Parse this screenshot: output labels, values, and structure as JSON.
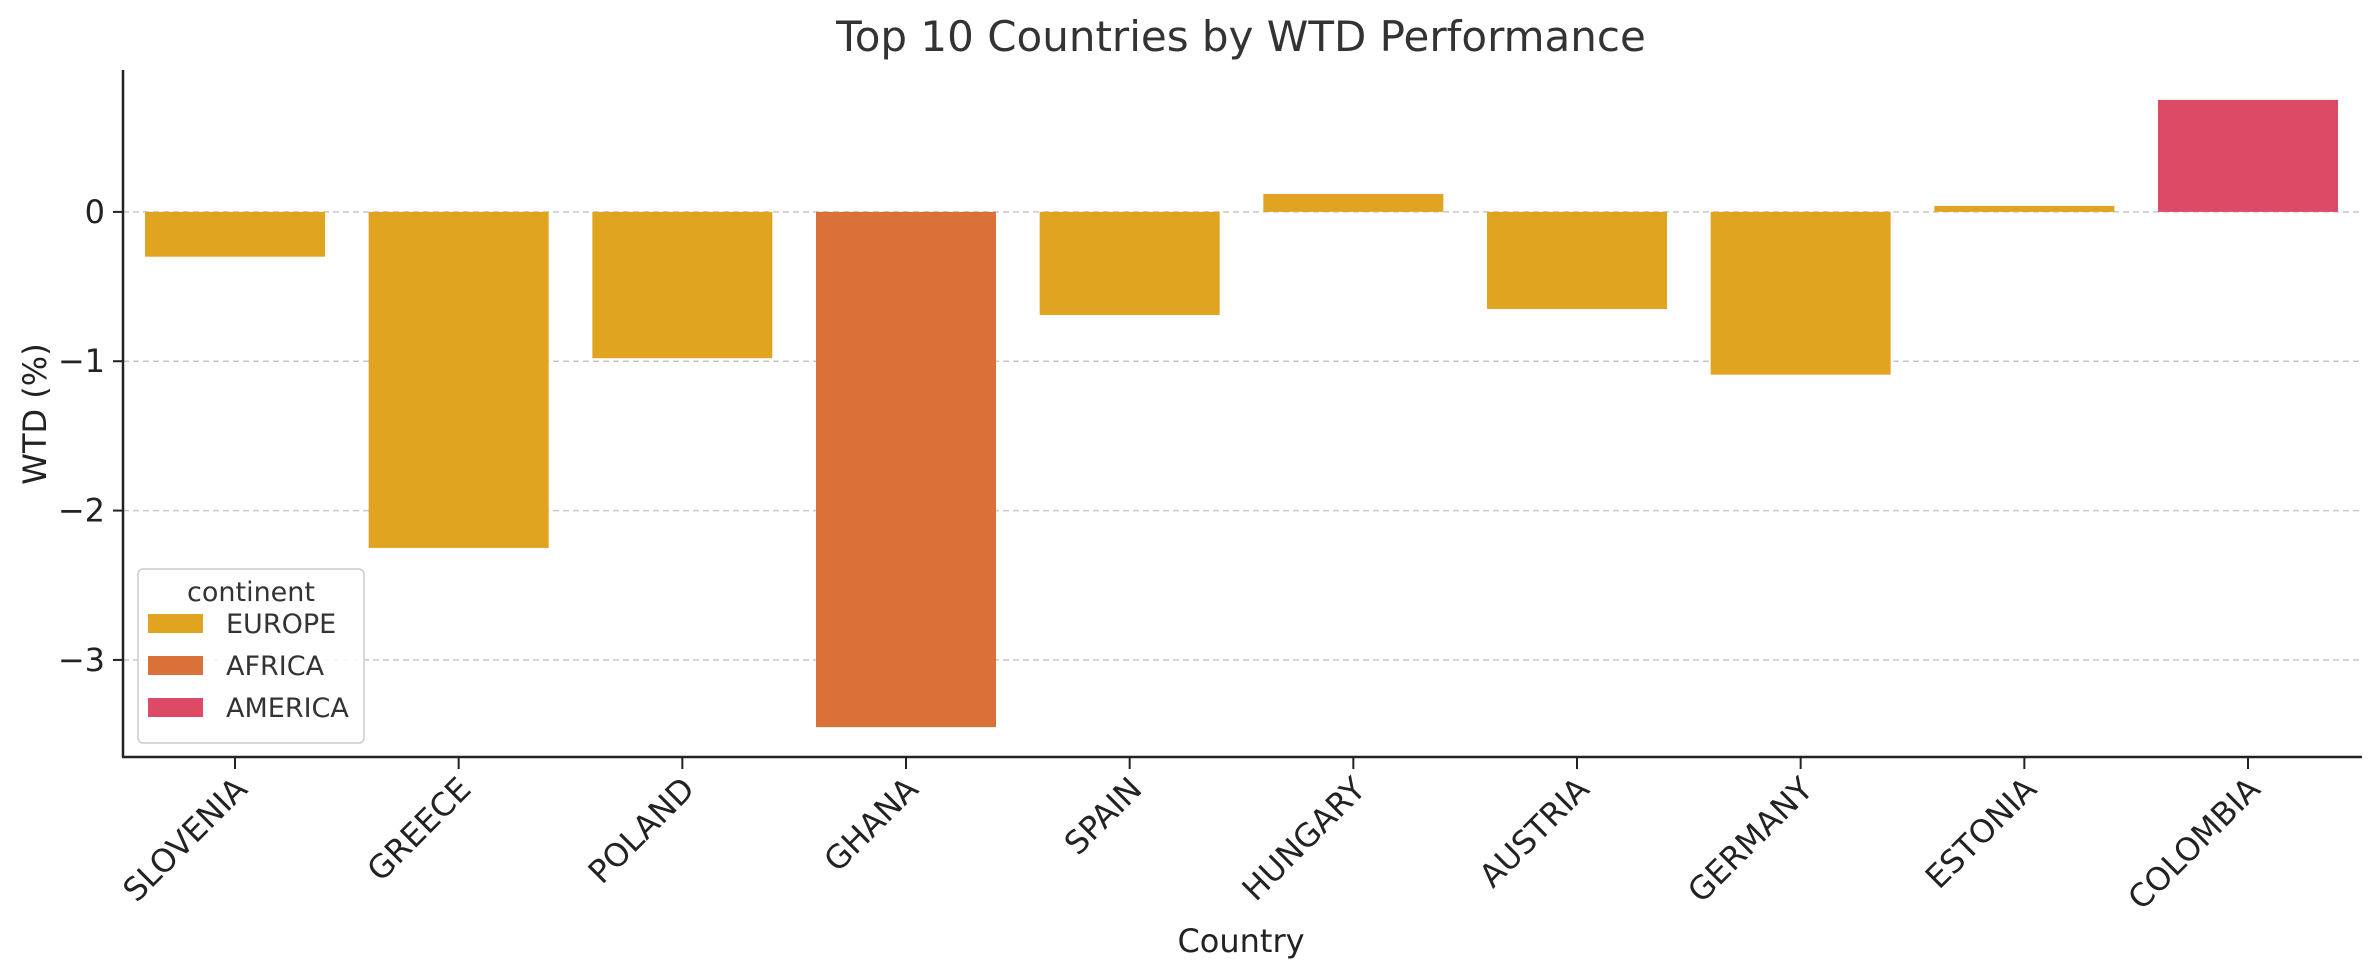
{
  "chart_data": {
    "type": "bar",
    "title": "Top 10 Countries by WTD Performance",
    "xlabel": "Country",
    "ylabel": "WTD (%)",
    "ylim": [
      -3.65,
      0.95
    ],
    "yticks": [
      0,
      -1,
      -2,
      -3
    ],
    "ytick_labels": [
      "0",
      "−1",
      "−2",
      "−3"
    ],
    "grid": "horizontal, dashed",
    "categories": [
      "SLOVENIA",
      "GREECE",
      "POLAND",
      "GHANA",
      "SPAIN",
      "HUNGARY",
      "AUSTRIA",
      "GERMANY",
      "ESTONIA",
      "COLOMBIA"
    ],
    "values": [
      -0.3,
      -2.25,
      -0.98,
      -3.45,
      -0.69,
      0.12,
      -0.65,
      -1.09,
      0.04,
      0.75
    ],
    "continent": [
      "EUROPE",
      "EUROPE",
      "EUROPE",
      "AFRICA",
      "EUROPE",
      "EUROPE",
      "EUROPE",
      "EUROPE",
      "EUROPE",
      "AMERICA"
    ],
    "legend": {
      "title": "continent",
      "position": "lower-left",
      "items": [
        {
          "name": "EUROPE",
          "color": "#E0A420"
        },
        {
          "name": "AFRICA",
          "color": "#DA7138"
        },
        {
          "name": "AMERICA",
          "color": "#DD4A66"
        }
      ]
    }
  }
}
